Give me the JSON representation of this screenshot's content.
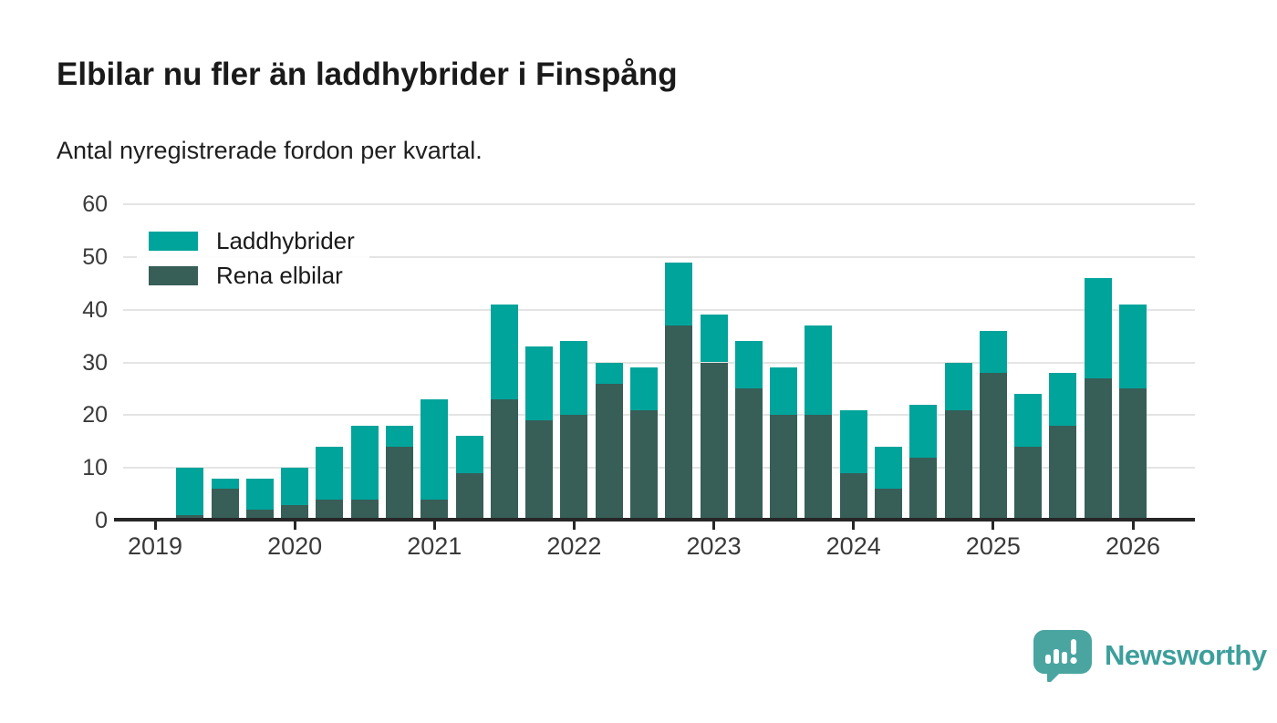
{
  "header": {
    "title": "Elbilar nu fler än laddhybrider i Finspång",
    "subtitle": "Antal nyregistrerade fordon per kvartal."
  },
  "chart_data": {
    "type": "bar",
    "stacked": true,
    "title": "Elbilar nu fler än laddhybrider i Finspång",
    "subtitle": "Antal nyregistrerade fordon per kvartal.",
    "xlabel": "",
    "ylabel": "",
    "ylim": [
      0,
      60
    ],
    "y_ticks": [
      0,
      10,
      20,
      30,
      40,
      50,
      60
    ],
    "x_tick_labels": [
      "2019",
      "2020",
      "2021",
      "2022",
      "2023",
      "2024",
      "2025",
      "2026"
    ],
    "grid": "horizontal",
    "legend_position": "top-left-inside",
    "categories": [
      "2019 Q2",
      "2019 Q3",
      "2019 Q4",
      "2020 Q1",
      "2020 Q2",
      "2020 Q3",
      "2020 Q4",
      "2021 Q1",
      "2021 Q2",
      "2021 Q3",
      "2021 Q4",
      "2022 Q1",
      "2022 Q2",
      "2022 Q3",
      "2022 Q4",
      "2023 Q1",
      "2023 Q2",
      "2023 Q3",
      "2023 Q4",
      "2024 Q1",
      "2024 Q2",
      "2024 Q3",
      "2024 Q4",
      "2025 Q1",
      "2025 Q2",
      "2025 Q3",
      "2025 Q4",
      "2026 Q1"
    ],
    "series": [
      {
        "name": "Laddhybrider",
        "color": "#00a49b",
        "values": [
          9,
          2,
          6,
          7,
          10,
          14,
          4,
          19,
          7,
          18,
          14,
          14,
          4,
          8,
          12,
          9,
          9,
          9,
          17,
          12,
          8,
          10,
          9,
          8,
          10,
          10,
          19,
          16
        ]
      },
      {
        "name": "Rena elbilar",
        "color": "#375e57",
        "values": [
          1,
          6,
          2,
          3,
          4,
          4,
          14,
          4,
          9,
          23,
          19,
          20,
          26,
          21,
          37,
          30,
          25,
          20,
          20,
          9,
          6,
          12,
          21,
          28,
          14,
          18,
          27,
          25
        ]
      }
    ],
    "stack_order_bottom_to_top": [
      "Rena elbilar",
      "Laddhybrider"
    ],
    "totals": [
      10,
      8,
      8,
      10,
      14,
      18,
      18,
      23,
      16,
      41,
      33,
      34,
      30,
      29,
      49,
      39,
      34,
      29,
      37,
      21,
      14,
      22,
      30,
      36,
      24,
      28,
      46,
      41
    ]
  },
  "footer": {
    "brand": "Newsworthy",
    "brand_text_color": "#3d9f9c",
    "logo_color": "#4aa5a1"
  },
  "colors": {
    "laddhybrider": "#00a49b",
    "rena_elbilar": "#375e57",
    "gridline": "#e4e4e4",
    "axis": "#262626",
    "text": "#1a1a1a"
  }
}
